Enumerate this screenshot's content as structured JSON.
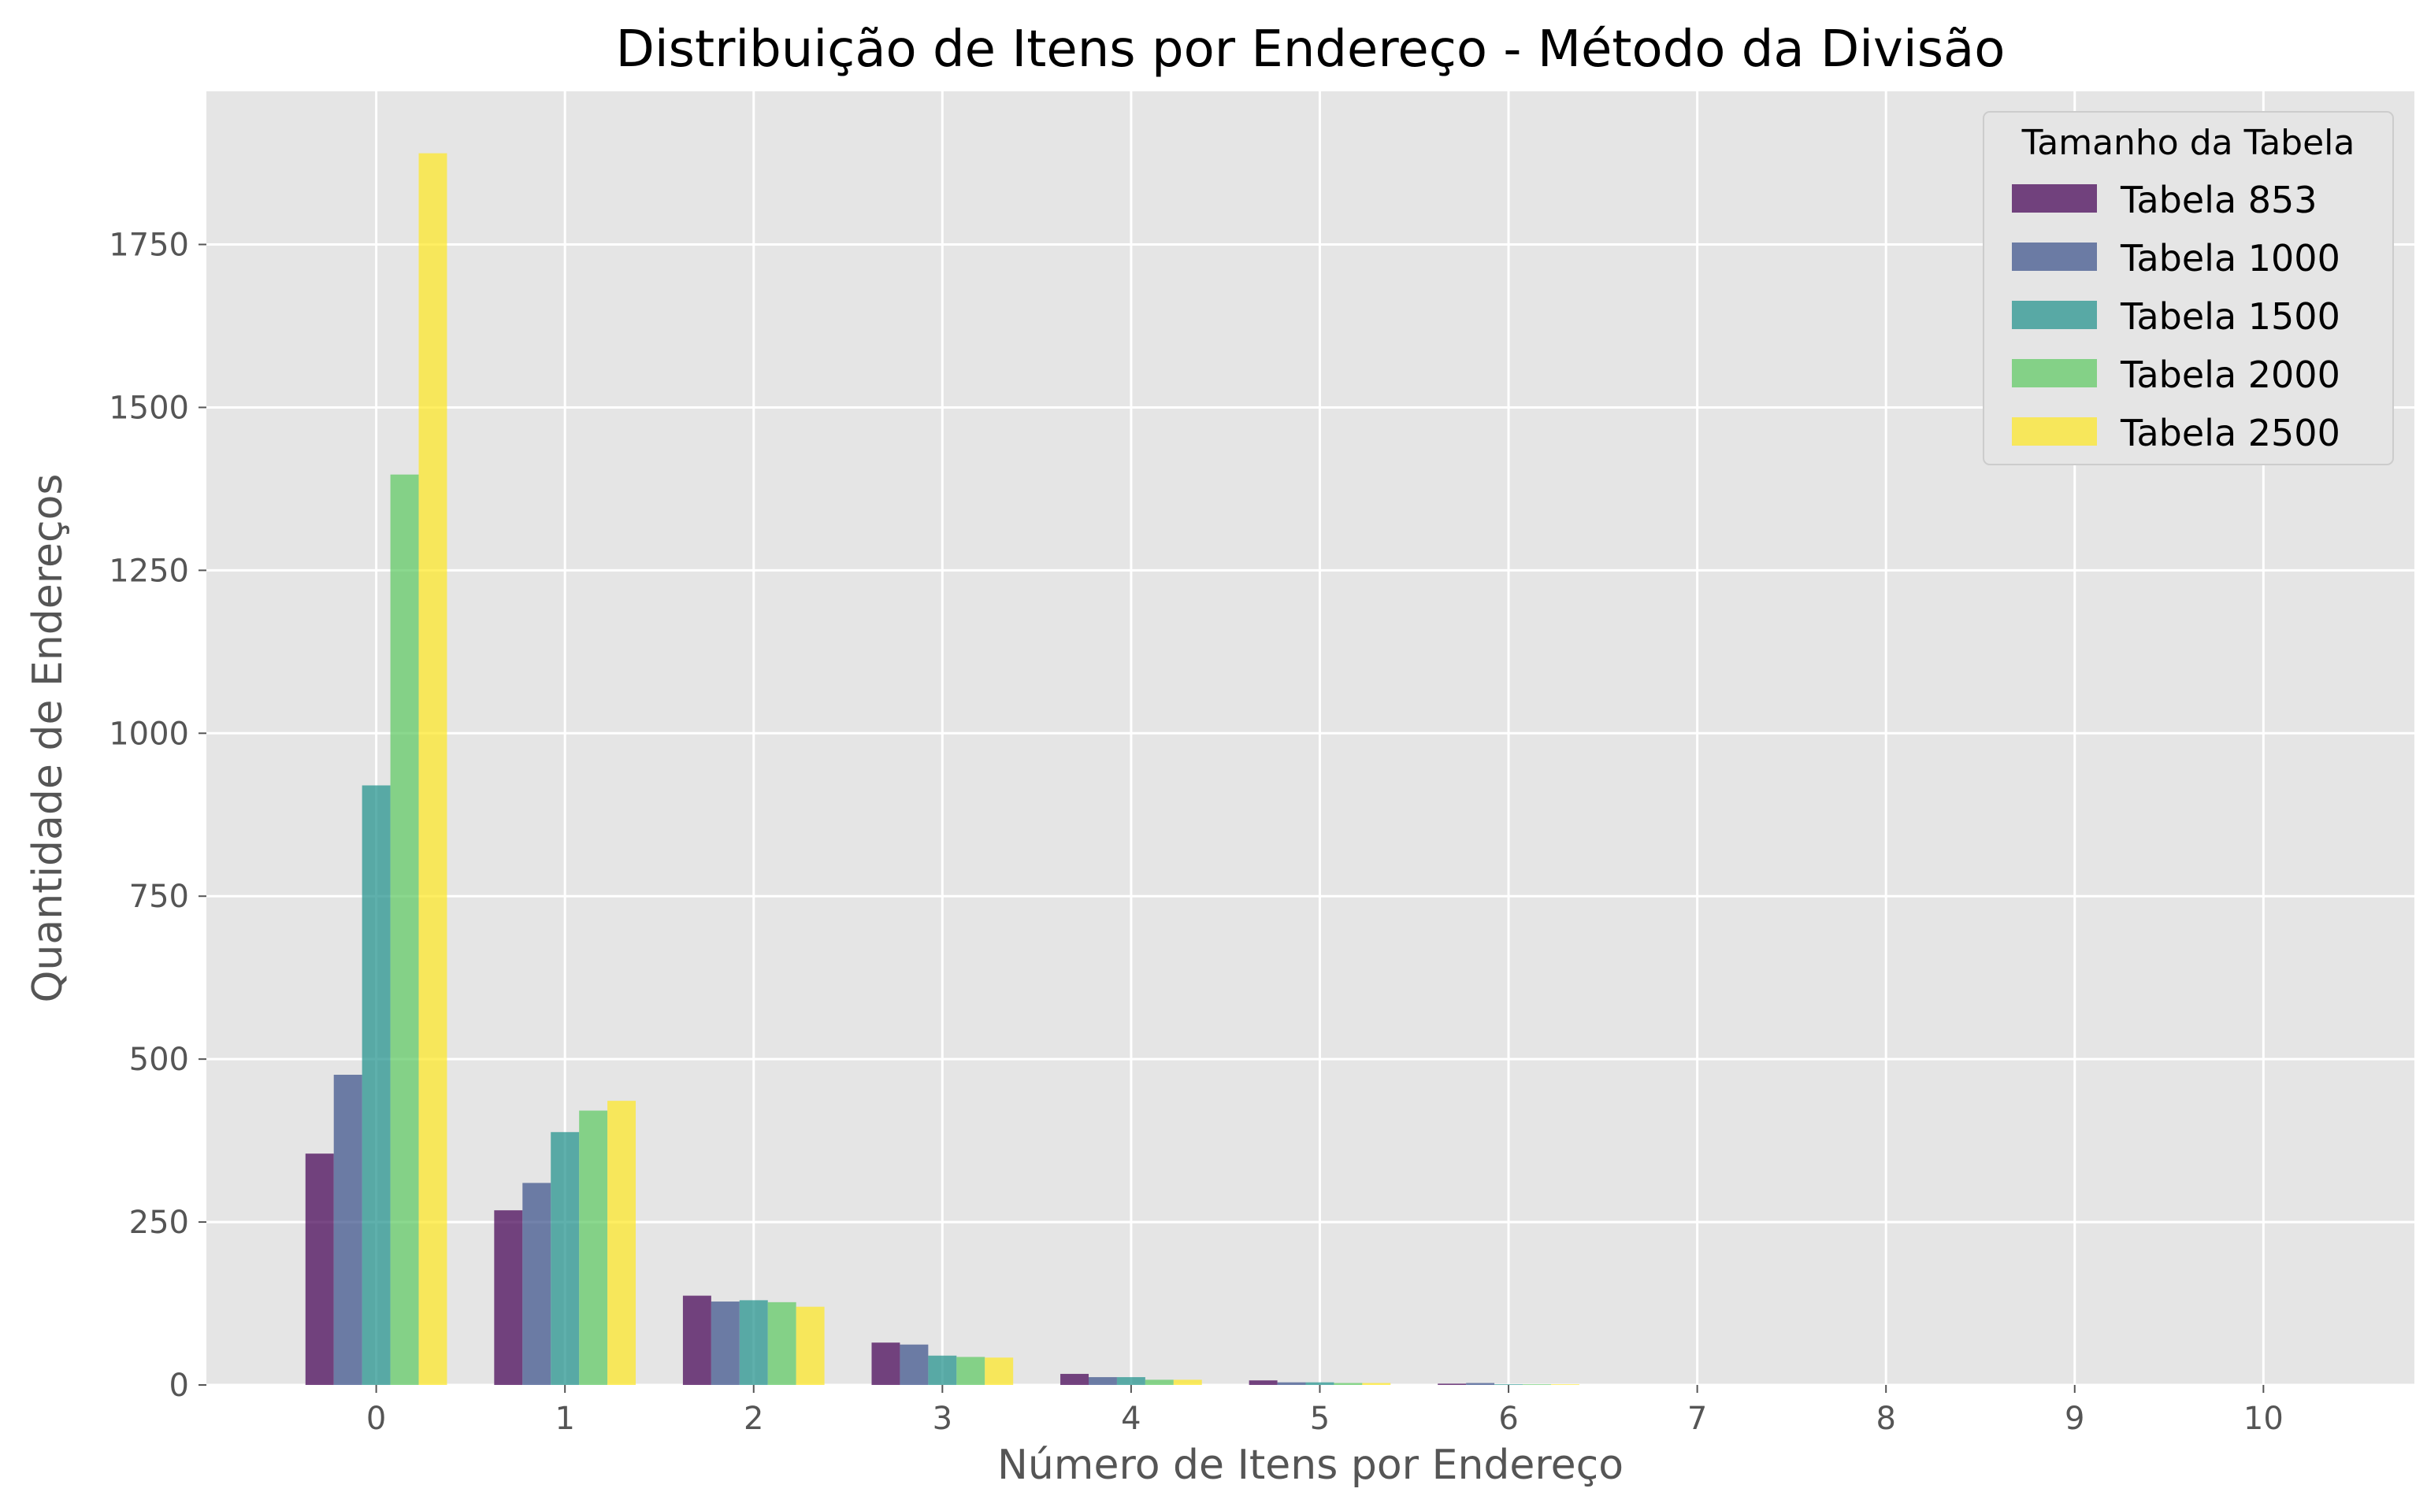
{
  "chart_data": {
    "type": "bar",
    "title": "Distribuição de Itens por Endereço - Método da Divisão",
    "xlabel": "Número de Itens por Endereço",
    "ylabel": "Quantidade de Endereços",
    "categories": [
      "0",
      "1",
      "2",
      "3",
      "4",
      "5",
      "6",
      "7",
      "8",
      "9",
      "10"
    ],
    "ylim": [
      0,
      1985
    ],
    "yticks": [
      0,
      250,
      500,
      750,
      1000,
      1250,
      1500,
      1750
    ],
    "ytick_labels": [
      "0",
      "250",
      "500",
      "750",
      "1000",
      "1250",
      "1500",
      "1750"
    ],
    "grid": true,
    "background": "#e5e5e5",
    "grid_color": "#ffffff",
    "legend": {
      "title": "Tamanho da Tabela",
      "placement": "top-right"
    },
    "series": [
      {
        "name": "Tabela 853",
        "color": "#440154",
        "values": [
          355,
          268,
          137,
          65,
          17,
          7,
          2,
          0,
          0,
          0,
          0
        ]
      },
      {
        "name": "Tabela 1000",
        "color": "#3b528b",
        "values": [
          476,
          310,
          128,
          62,
          12,
          4,
          3,
          0,
          0,
          0,
          0
        ]
      },
      {
        "name": "Tabela 1500",
        "color": "#21918c",
        "values": [
          920,
          388,
          130,
          45,
          12,
          4,
          1,
          0,
          0,
          0,
          0
        ]
      },
      {
        "name": "Tabela 2000",
        "color": "#5ec962",
        "values": [
          1397,
          421,
          127,
          43,
          8,
          3,
          1,
          0,
          0,
          0,
          0
        ]
      },
      {
        "name": "Tabela 2500",
        "color": "#fde725",
        "values": [
          1890,
          436,
          120,
          42,
          8,
          3,
          1,
          0,
          0,
          0,
          0
        ]
      }
    ]
  }
}
